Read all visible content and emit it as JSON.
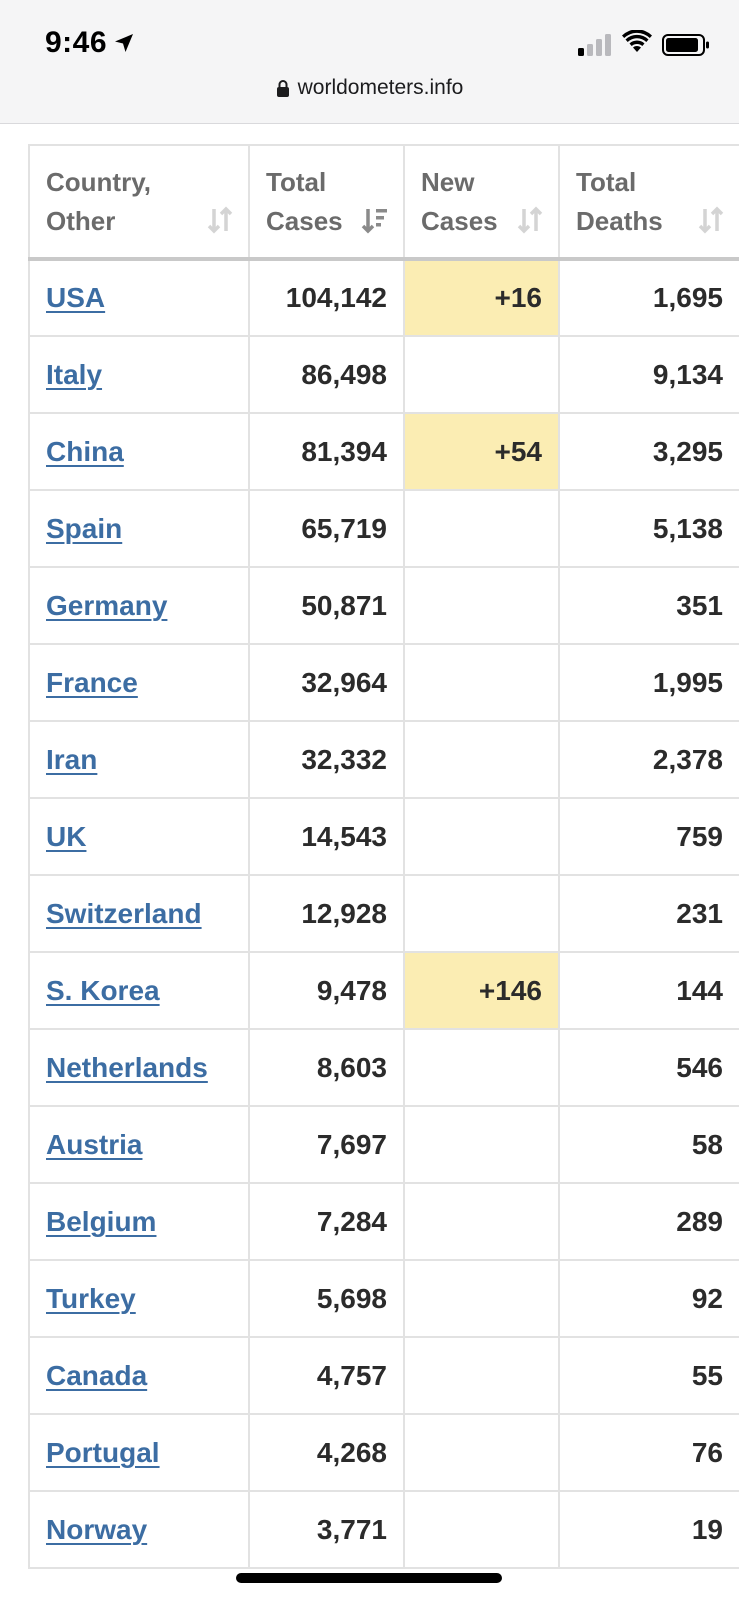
{
  "status_bar": {
    "time": "9:46",
    "url": "worldometers.info"
  },
  "table": {
    "headers": [
      {
        "line1": "Country,",
        "line2": "Other"
      },
      {
        "line1": "Total",
        "line2": "Cases"
      },
      {
        "line1": "New",
        "line2": "Cases"
      },
      {
        "line1": "Total",
        "line2": "Deaths"
      }
    ],
    "rows": [
      {
        "country": "USA",
        "total_cases": "104,142",
        "new_cases": "+16",
        "total_deaths": "1,695"
      },
      {
        "country": "Italy",
        "total_cases": "86,498",
        "new_cases": "",
        "total_deaths": "9,134"
      },
      {
        "country": "China",
        "total_cases": "81,394",
        "new_cases": "+54",
        "total_deaths": "3,295"
      },
      {
        "country": "Spain",
        "total_cases": "65,719",
        "new_cases": "",
        "total_deaths": "5,138"
      },
      {
        "country": "Germany",
        "total_cases": "50,871",
        "new_cases": "",
        "total_deaths": "351"
      },
      {
        "country": "France",
        "total_cases": "32,964",
        "new_cases": "",
        "total_deaths": "1,995"
      },
      {
        "country": "Iran",
        "total_cases": "32,332",
        "new_cases": "",
        "total_deaths": "2,378"
      },
      {
        "country": "UK",
        "total_cases": "14,543",
        "new_cases": "",
        "total_deaths": "759"
      },
      {
        "country": "Switzerland",
        "total_cases": "12,928",
        "new_cases": "",
        "total_deaths": "231"
      },
      {
        "country": "S. Korea",
        "total_cases": "9,478",
        "new_cases": "+146",
        "total_deaths": "144"
      },
      {
        "country": "Netherlands",
        "total_cases": "8,603",
        "new_cases": "",
        "total_deaths": "546"
      },
      {
        "country": "Austria",
        "total_cases": "7,697",
        "new_cases": "",
        "total_deaths": "58"
      },
      {
        "country": "Belgium",
        "total_cases": "7,284",
        "new_cases": "",
        "total_deaths": "289"
      },
      {
        "country": "Turkey",
        "total_cases": "5,698",
        "new_cases": "",
        "total_deaths": "92"
      },
      {
        "country": "Canada",
        "total_cases": "4,757",
        "new_cases": "",
        "total_deaths": "55"
      },
      {
        "country": "Portugal",
        "total_cases": "4,268",
        "new_cases": "",
        "total_deaths": "76"
      },
      {
        "country": "Norway",
        "total_cases": "3,771",
        "new_cases": "",
        "total_deaths": "19"
      }
    ]
  },
  "colors": {
    "link": "#3c6da3",
    "new_cases_highlight": "#fbedb3"
  }
}
